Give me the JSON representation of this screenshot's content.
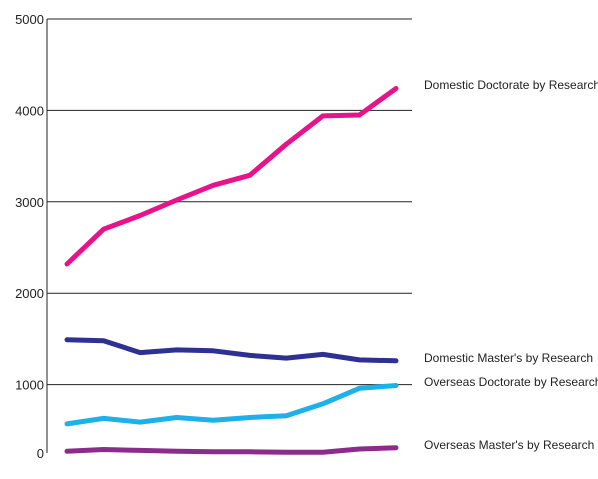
{
  "chart_data": {
    "type": "line",
    "title": "",
    "xlabel": "",
    "ylabel": "",
    "ylim": [
      0,
      5000
    ],
    "yticks": [
      0,
      1000,
      2000,
      3000,
      4000,
      5000
    ],
    "grid": true,
    "legend": "right-end labels",
    "x": [
      1,
      2,
      3,
      4,
      5,
      6,
      7,
      8,
      9,
      10
    ],
    "series": [
      {
        "name": "Domestic Doctorate by Research",
        "color": "#e8138b",
        "values": [
          2320,
          2700,
          2850,
          3020,
          3180,
          3290,
          3630,
          3940,
          3950,
          4240
        ]
      },
      {
        "name": "Domestic Master's by Research",
        "color": "#2e3192",
        "values": [
          1490,
          1480,
          1350,
          1380,
          1370,
          1320,
          1290,
          1330,
          1270,
          1260
        ]
      },
      {
        "name": "Overseas Doctorate by Research",
        "color": "#1eb0e8",
        "values": [
          570,
          630,
          590,
          640,
          610,
          640,
          660,
          790,
          960,
          990
        ]
      },
      {
        "name": "Overseas Master's by Research",
        "color": "#8b2c8c",
        "values": [
          270,
          290,
          280,
          270,
          265,
          265,
          260,
          260,
          295,
          310
        ]
      }
    ]
  }
}
